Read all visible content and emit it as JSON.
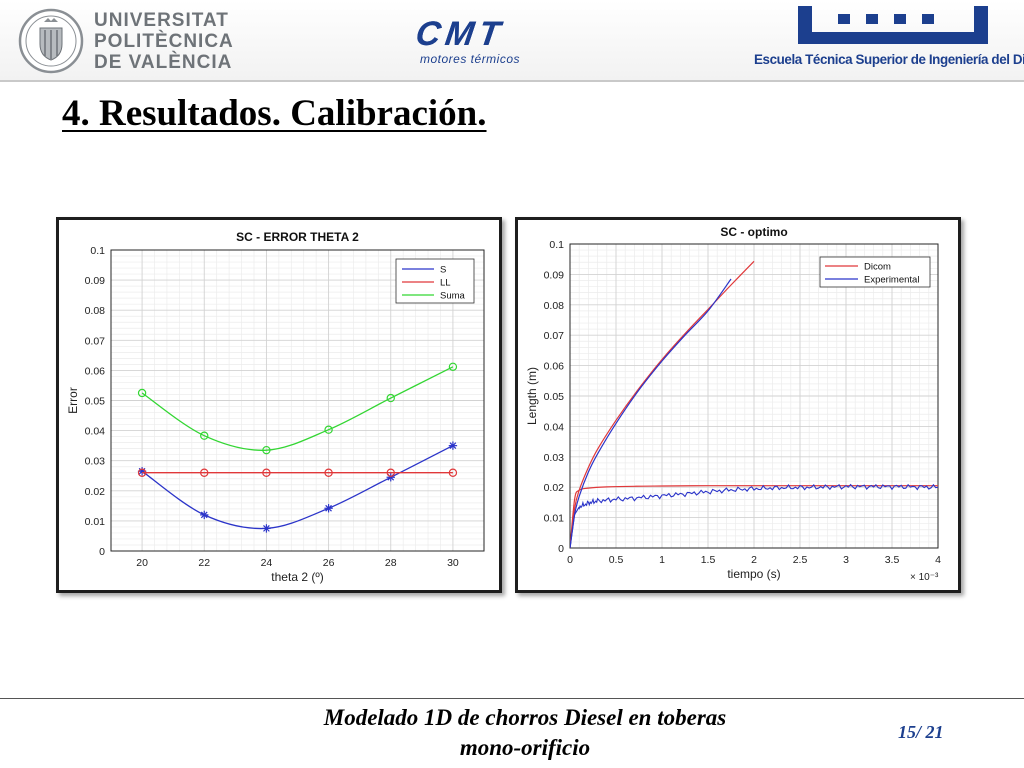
{
  "header": {
    "upv_lines": [
      "UNIVERSITAT",
      "POLITÈCNICA",
      "DE VALÈNCIA"
    ],
    "cmt_logo": "CMT",
    "cmt_subtitle": "motores térmicos",
    "etsid_name": "Escuela Técnica Superior de Ingeniería del Diseño",
    "brand_color": "#1c3f8e"
  },
  "slide": {
    "title": "4. Resultados. Calibración."
  },
  "footer": {
    "line1": "Modelado 1D de chorros Diesel en toberas",
    "line2": "mono-orificio",
    "page": "15/ 21"
  },
  "chart_data": [
    {
      "type": "line",
      "title": "SC - ERROR THETA 2",
      "xlabel": "theta 2 (º)",
      "ylabel": "Error",
      "xlim": [
        19,
        31
      ],
      "ylim": [
        0,
        0.1
      ],
      "xticks": [
        20,
        22,
        24,
        26,
        28,
        30
      ],
      "yticks": [
        0,
        0.01,
        0.02,
        0.03,
        0.04,
        0.05,
        0.06,
        0.07,
        0.08,
        0.09,
        0.1
      ],
      "ytick_labels": [
        "0",
        "0.01",
        "0.02",
        "0.03",
        "0.04",
        "0.05",
        "0.06",
        "0.07",
        "0.08",
        "0.09",
        "0.1"
      ],
      "grid": true,
      "legend": "top-right",
      "x": [
        20,
        22,
        24,
        26,
        28,
        30
      ],
      "series": [
        {
          "name": "S",
          "color": "#2b34c9",
          "marker": "star",
          "values": [
            0.0265,
            0.012,
            0.0075,
            0.0142,
            0.0245,
            0.035
          ]
        },
        {
          "name": "LL",
          "color": "#e0383a",
          "marker": "circle",
          "values": [
            0.026,
            0.026,
            0.026,
            0.026,
            0.026,
            0.026
          ]
        },
        {
          "name": "Suma",
          "color": "#33d633",
          "marker": "circle",
          "values": [
            0.0525,
            0.0383,
            0.0335,
            0.0403,
            0.0508,
            0.0612
          ]
        }
      ]
    },
    {
      "type": "line",
      "title": "SC - optimo",
      "xlabel": "tiempo (s)",
      "ylabel": "Length (m)",
      "x_multiplier": "× 10⁻³",
      "xlim": [
        0,
        4
      ],
      "ylim": [
        0,
        0.1
      ],
      "xticks": [
        0,
        0.5,
        1,
        1.5,
        2,
        2.5,
        3,
        3.5,
        4
      ],
      "yticks": [
        0,
        0.01,
        0.02,
        0.03,
        0.04,
        0.05,
        0.06,
        0.07,
        0.08,
        0.09,
        0.1
      ],
      "ytick_labels": [
        "0",
        "0.01",
        "0.02",
        "0.03",
        "0.04",
        "0.05",
        "0.06",
        "0.07",
        "0.08",
        "0.09",
        "0.1"
      ],
      "grid": true,
      "legend": "top-right",
      "series": [
        {
          "name": "Dicom",
          "color": "#e0383a",
          "group": "penetration",
          "x": [
            0,
            0.05,
            0.1,
            0.2,
            0.3,
            0.5,
            0.75,
            1.0,
            1.25,
            1.5,
            1.75,
            2.0
          ],
          "values": [
            0,
            0.013,
            0.019,
            0.0265,
            0.0325,
            0.042,
            0.0525,
            0.062,
            0.0705,
            0.0785,
            0.0865,
            0.0943
          ]
        },
        {
          "name": "Dicom",
          "color": "#e0383a",
          "group": "plateau",
          "x": [
            0,
            0.05,
            0.1,
            0.2,
            0.4,
            0.7,
            1.0,
            1.5,
            2.0,
            2.5,
            3.0,
            3.5,
            4.0
          ],
          "values": [
            0,
            0.016,
            0.019,
            0.0197,
            0.0201,
            0.0203,
            0.0204,
            0.0205,
            0.0205,
            0.0205,
            0.0205,
            0.0205,
            0.0205
          ]
        },
        {
          "name": "Experimental",
          "color": "#2b34c9",
          "group": "penetration",
          "x": [
            0,
            0.05,
            0.1,
            0.2,
            0.3,
            0.5,
            0.75,
            1.0,
            1.25,
            1.5,
            1.75
          ],
          "values": [
            0,
            0.011,
            0.017,
            0.025,
            0.031,
            0.041,
            0.052,
            0.0615,
            0.07,
            0.078,
            0.0885
          ]
        },
        {
          "name": "Experimental",
          "color": "#2b34c9",
          "group": "plateau",
          "x": [
            0,
            0.05,
            0.1,
            0.2,
            0.3,
            0.5,
            0.75,
            1.0,
            1.25,
            1.5,
            1.75,
            2.0,
            2.25,
            2.5,
            2.75,
            3.0,
            3.25,
            3.5,
            3.75,
            4.0
          ],
          "values": [
            0,
            0.011,
            0.0135,
            0.0148,
            0.0155,
            0.016,
            0.0165,
            0.0172,
            0.0178,
            0.0185,
            0.0191,
            0.0195,
            0.0198,
            0.0199,
            0.02,
            0.0202,
            0.0202,
            0.0202,
            0.0201,
            0.02
          ]
        }
      ]
    }
  ]
}
